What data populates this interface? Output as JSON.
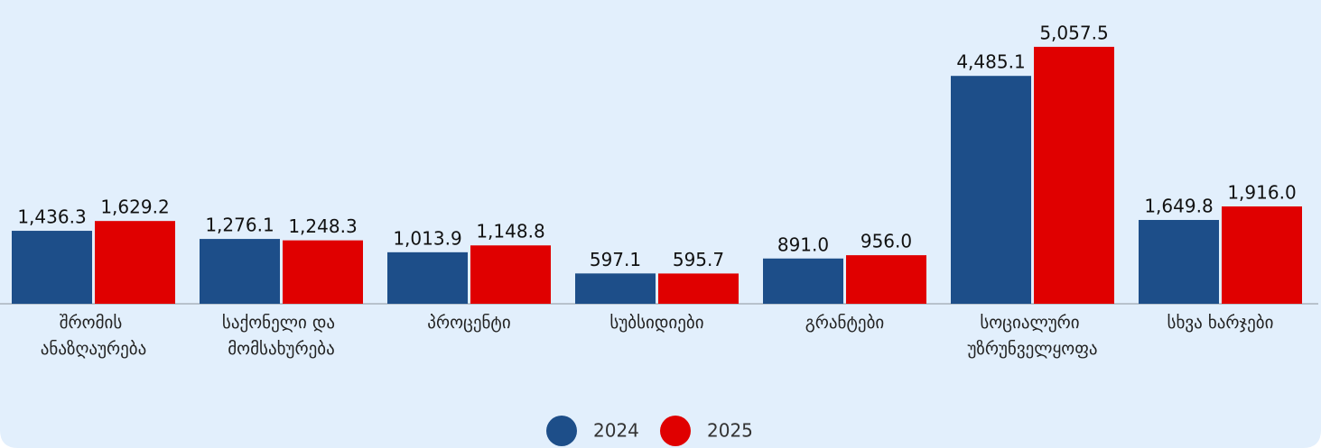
{
  "chart_data": {
    "type": "bar",
    "categories": [
      "შრომის ანაზღაურება",
      "საქონელი და მომსახურება",
      "პროცენტი",
      "სუბსიდიები",
      "გრანტები",
      "სოციალური უზრუნველყოფა",
      "სხვა ხარჯები"
    ],
    "series": [
      {
        "name": "2024",
        "color": "#1d4e89",
        "values": [
          1436.3,
          1276.1,
          1013.9,
          597.1,
          891.0,
          4485.1,
          1649.8
        ],
        "value_labels": [
          "1,436.3",
          "1,276.1",
          "1,013.9",
          "597.1",
          "891.0",
          "4,485.1",
          "1,649.8"
        ]
      },
      {
        "name": "2025",
        "color": "#e00000",
        "values": [
          1629.2,
          1248.3,
          1148.8,
          595.7,
          956.0,
          5057.5,
          1916.0
        ],
        "value_labels": [
          "1,629.2",
          "1,248.3",
          "1,148.8",
          "595.7",
          "956.0",
          "5,057.5",
          "1,916.0"
        ]
      }
    ],
    "ylim": [
      0,
      5500
    ],
    "legend": "bottom"
  }
}
